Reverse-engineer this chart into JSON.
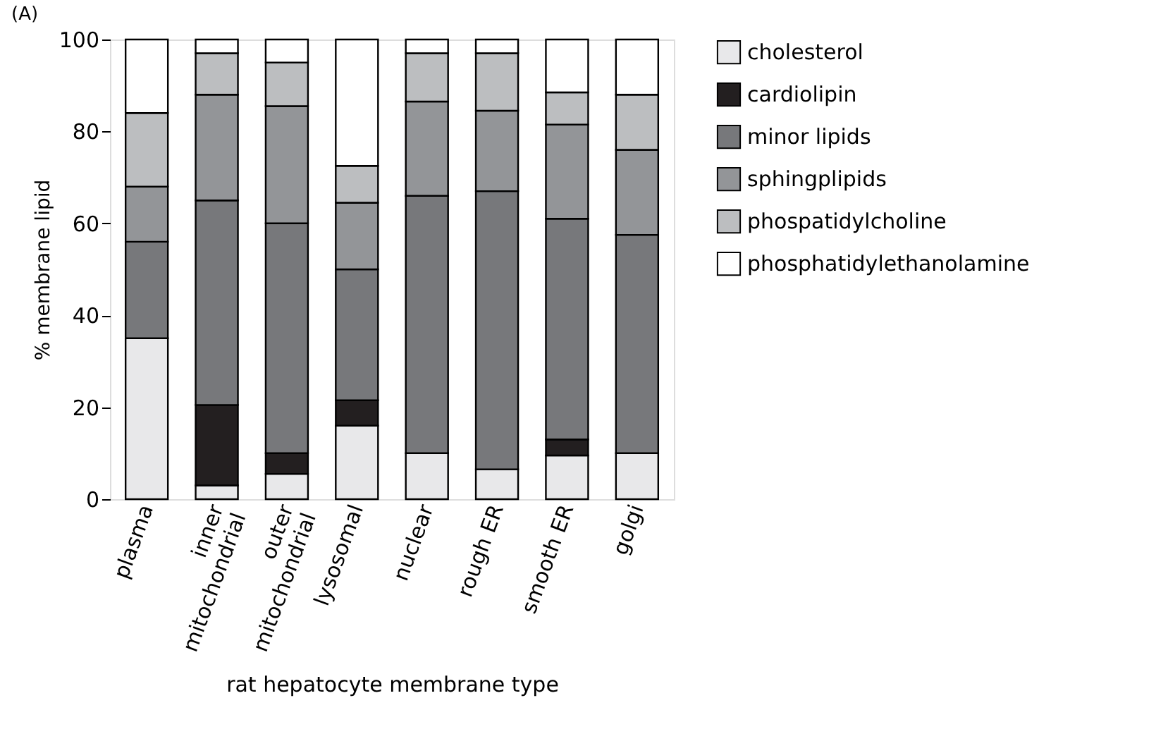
{
  "chart_data": {
    "type": "bar",
    "stacked": true,
    "title": "(A)",
    "xlabel": "rat hepatocyte membrane type",
    "ylabel": "% membrane lipid",
    "categories": [
      "plasma",
      "inner\nmitochondrial",
      "outer\nmitochondrial",
      "lysosomal",
      "nuclear",
      "rough ER",
      "smooth ER",
      "golgi"
    ],
    "series": [
      {
        "name": "cholesterol",
        "color": "#e8e8ea",
        "values": [
          35,
          3,
          5.5,
          16,
          10,
          6.5,
          9.5,
          10
        ]
      },
      {
        "name": "cardiolipin",
        "color": "#231f20",
        "values": [
          null,
          17.5,
          4.5,
          5.5,
          null,
          null,
          3.5,
          null
        ]
      },
      {
        "name": "minor lipids",
        "color": "#77787b",
        "values": [
          21,
          44.5,
          50,
          28.5,
          56,
          60.5,
          48,
          47.5
        ]
      },
      {
        "name": "sphingplipids",
        "color": "#939598",
        "values": [
          12,
          23,
          25.5,
          14.5,
          20.5,
          17.5,
          20.5,
          18.5
        ]
      },
      {
        "name": "phospatidylcholine",
        "color": "#bcbec0",
        "values": [
          16,
          9,
          9.5,
          8,
          10.5,
          12.5,
          7,
          12
        ]
      },
      {
        "name": "phosphatidylethanolamine",
        "color": "#ffffff",
        "values": [
          16,
          3,
          5,
          27.5,
          3,
          3,
          11.5,
          12
        ]
      }
    ],
    "ylim": [
      0,
      100
    ],
    "yticks": [
      0,
      20,
      40,
      60,
      80,
      100
    ],
    "grid": false,
    "legend": "right"
  }
}
